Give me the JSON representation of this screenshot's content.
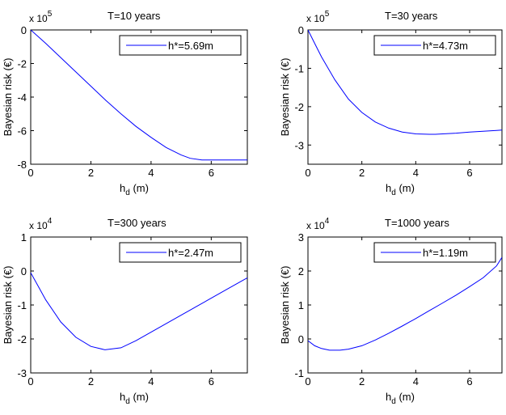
{
  "chart_data": [
    {
      "type": "line",
      "title": "T=10 years",
      "multiplier": {
        "base": "x 10",
        "exp": "5"
      },
      "xlabel": {
        "main": "h",
        "sub": "d",
        "unit": " (m)"
      },
      "ylabel": "Bayesian risk (€)",
      "xlim": [
        0,
        7.2
      ],
      "ylim": [
        -8,
        0
      ],
      "xticks": [
        0,
        2,
        4,
        6
      ],
      "yticks": [
        0,
        -2,
        -4,
        -6,
        -8
      ],
      "legend": {
        "label": "h*=5.69m",
        "placement": "top-right"
      },
      "color": "#0000ff",
      "series": [
        {
          "x": [
            0,
            0.5,
            1,
            1.5,
            2,
            2.5,
            3,
            3.5,
            4,
            4.5,
            5,
            5.3,
            5.69,
            6,
            6.5,
            7,
            7.2
          ],
          "y": [
            0,
            -0.8,
            -1.65,
            -2.5,
            -3.35,
            -4.2,
            -5.0,
            -5.75,
            -6.4,
            -7.0,
            -7.45,
            -7.65,
            -7.75,
            -7.75,
            -7.75,
            -7.75,
            -7.75
          ]
        }
      ]
    },
    {
      "type": "line",
      "title": "T=30 years",
      "multiplier": {
        "base": "x 10",
        "exp": "5"
      },
      "xlabel": {
        "main": "h",
        "sub": "d",
        "unit": " (m)"
      },
      "ylabel": "Bayesian risk (€)",
      "xlim": [
        0,
        7.2
      ],
      "ylim": [
        -3.5,
        0
      ],
      "xticks": [
        0,
        2,
        4,
        6
      ],
      "yticks": [
        0,
        -1,
        -2,
        -3
      ],
      "legend": {
        "label": "h*=4.73m",
        "placement": "top-right"
      },
      "color": "#0000ff",
      "series": [
        {
          "x": [
            0,
            0.25,
            0.5,
            1,
            1.5,
            2,
            2.5,
            3,
            3.5,
            4,
            4.5,
            4.73,
            5,
            5.5,
            6,
            6.5,
            7,
            7.2
          ],
          "y": [
            0,
            -0.35,
            -0.7,
            -1.3,
            -1.8,
            -2.15,
            -2.4,
            -2.56,
            -2.66,
            -2.71,
            -2.72,
            -2.72,
            -2.71,
            -2.69,
            -2.66,
            -2.64,
            -2.62,
            -2.61
          ]
        }
      ]
    },
    {
      "type": "line",
      "title": "T=300 years",
      "multiplier": {
        "base": "x 10",
        "exp": "4"
      },
      "xlabel": {
        "main": "h",
        "sub": "d",
        "unit": " (m)"
      },
      "ylabel": "Bayesian risk (€)",
      "xlim": [
        0,
        7.2
      ],
      "ylim": [
        -3,
        1
      ],
      "xticks": [
        0,
        2,
        4,
        6
      ],
      "yticks": [
        1,
        0,
        -1,
        -2,
        -3
      ],
      "legend": {
        "label": "h*=2.47m",
        "placement": "top-right"
      },
      "color": "#0000ff",
      "series": [
        {
          "x": [
            0,
            0.25,
            0.5,
            1,
            1.5,
            2,
            2.47,
            3,
            3.5,
            4,
            4.5,
            5,
            5.5,
            6,
            6.5,
            7,
            7.2
          ],
          "y": [
            -0.05,
            -0.45,
            -0.85,
            -1.5,
            -1.95,
            -2.22,
            -2.32,
            -2.26,
            -2.05,
            -1.8,
            -1.55,
            -1.3,
            -1.05,
            -0.8,
            -0.55,
            -0.3,
            -0.2
          ]
        }
      ]
    },
    {
      "type": "line",
      "title": "T=1000 years",
      "multiplier": {
        "base": "x 10",
        "exp": "4"
      },
      "xlabel": {
        "main": "h",
        "sub": "d",
        "unit": " (m)"
      },
      "ylabel": "Bayesian risk (€)",
      "xlim": [
        0,
        7.2
      ],
      "ylim": [
        -1,
        3
      ],
      "xticks": [
        0,
        2,
        4,
        6
      ],
      "yticks": [
        3,
        2,
        1,
        0,
        -1
      ],
      "legend": {
        "label": "h*=1.19m",
        "placement": "top-right"
      },
      "color": "#0000ff",
      "series": [
        {
          "x": [
            0,
            0.25,
            0.5,
            0.8,
            1.19,
            1.5,
            2,
            2.5,
            3,
            3.5,
            4,
            4.5,
            5,
            5.5,
            6,
            6.5,
            7,
            7.2
          ],
          "y": [
            -0.05,
            -0.2,
            -0.28,
            -0.33,
            -0.33,
            -0.3,
            -0.2,
            -0.03,
            0.17,
            0.38,
            0.6,
            0.83,
            1.06,
            1.29,
            1.54,
            1.8,
            2.15,
            2.4
          ]
        }
      ]
    }
  ]
}
